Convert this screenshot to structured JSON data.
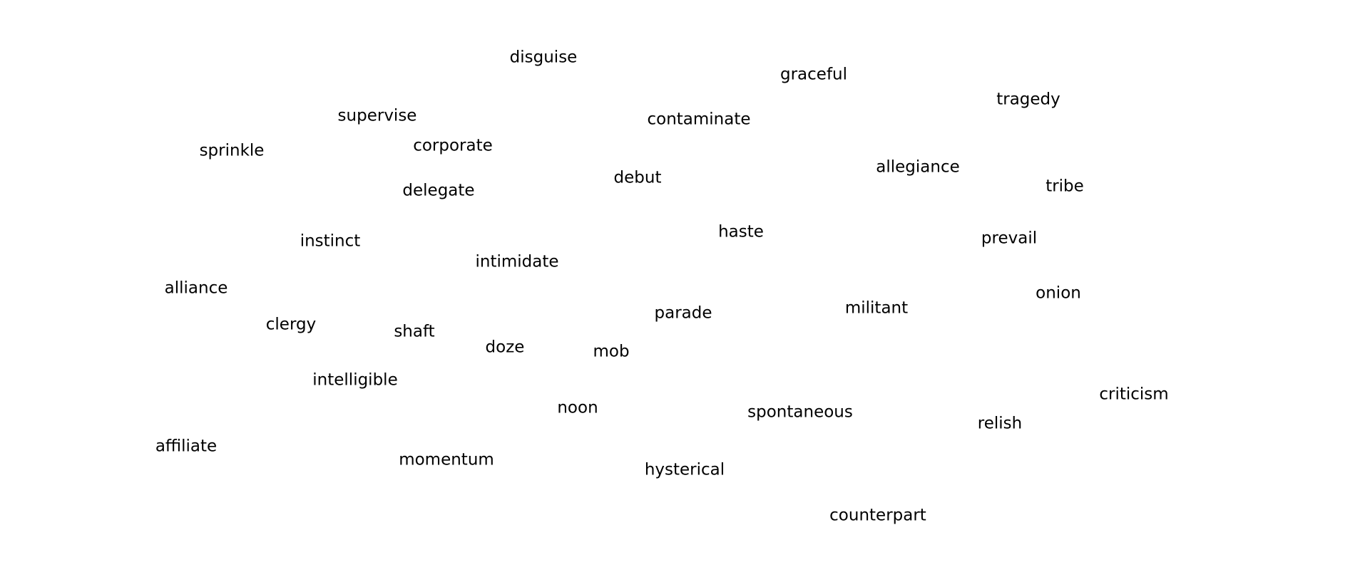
{
  "colors": {
    "background": "#ffffff",
    "text": "#000000"
  },
  "words": [
    "disguise",
    "graceful",
    "tragedy",
    "supervise",
    "contaminate",
    "sprinkle",
    "corporate",
    "allegiance",
    "debut",
    "delegate",
    "tribe",
    "haste",
    "prevail",
    "instinct",
    "intimidate",
    "alliance",
    "onion",
    "militant",
    "parade",
    "clergy",
    "shaft",
    "doze",
    "mob",
    "intelligible",
    "criticism",
    "noon",
    "spontaneous",
    "relish",
    "affiliate",
    "momentum",
    "hysterical",
    "counterpart"
  ]
}
